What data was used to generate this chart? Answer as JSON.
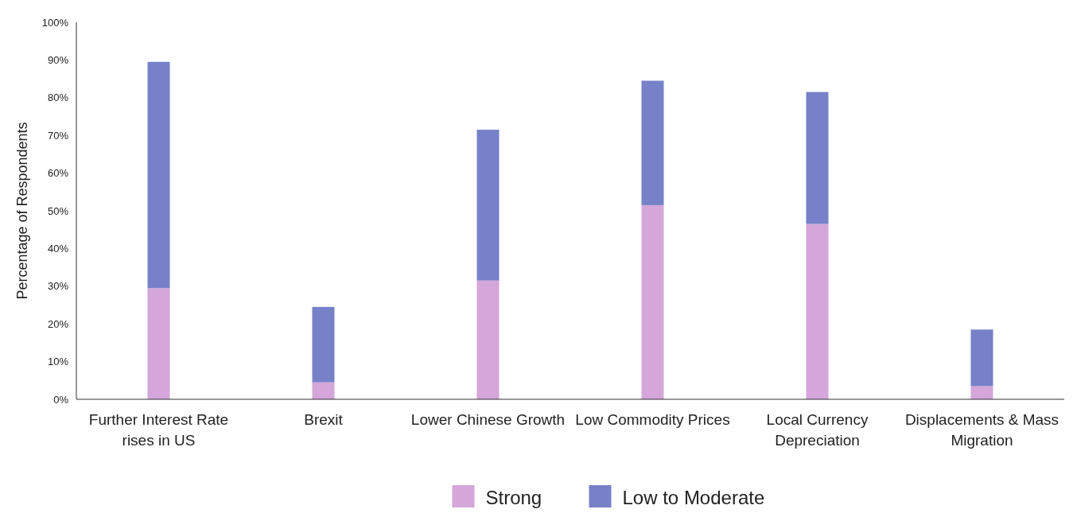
{
  "chart_data": {
    "type": "bar",
    "stacked": true,
    "ylabel": "Percentage of Respondents",
    "categories": [
      "Further Interest Rate rises in US",
      "Brexit",
      "Lower Chinese Growth",
      "Low Commodity Prices",
      "Local Currency Depreciation",
      "Displacements & Mass Migration"
    ],
    "series": [
      {
        "name": "Strong",
        "color": "#d4a6d9",
        "values": [
          29.5,
          4.5,
          31.5,
          51.5,
          46.5,
          3.5
        ]
      },
      {
        "name": "Low to Moderate",
        "color": "#7681c8",
        "values": [
          60,
          20,
          40,
          33,
          35,
          15
        ]
      }
    ],
    "ylim": [
      0,
      100
    ],
    "yticks": [
      {
        "value": 0,
        "label": "0%"
      },
      {
        "value": 10,
        "label": "10%"
      },
      {
        "value": 20,
        "label": "20%"
      },
      {
        "value": 30,
        "label": "30%"
      },
      {
        "value": 40,
        "label": "40%"
      },
      {
        "value": 50,
        "label": "50%"
      },
      {
        "value": 60,
        "label": "60%"
      },
      {
        "value": 70,
        "label": "70%"
      },
      {
        "value": 80,
        "label": "80%"
      },
      {
        "value": 90,
        "label": "90%"
      },
      {
        "value": 100,
        "label": "100%"
      }
    ],
    "grid": false,
    "legend": "bottom"
  }
}
